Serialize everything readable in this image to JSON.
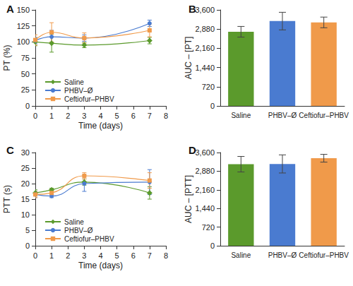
{
  "chart_data": [
    {
      "type": "line",
      "title": "A",
      "xlabel": "Time (days)",
      "ylabel": "PT (%)",
      "x": [
        0,
        1,
        3,
        7
      ],
      "xlim": [
        0,
        8
      ],
      "xticks": [
        0,
        1,
        2,
        3,
        4,
        5,
        6,
        7,
        8
      ],
      "ylim": [
        0,
        150
      ],
      "yticks": [
        0,
        25,
        50,
        75,
        100,
        125,
        150
      ],
      "grid": false,
      "legend": "lower left",
      "series": [
        {
          "name": "Saline",
          "color": "#5b9a2c",
          "marker": "diamond",
          "values": [
            100,
            98,
            95,
            102
          ],
          "errors": [
            6,
            14,
            4,
            5
          ]
        },
        {
          "name": "PHBV–Ø",
          "color": "#4a7bd0",
          "marker": "circle",
          "values": [
            102,
            108,
            106,
            129
          ],
          "errors": [
            5,
            10,
            5,
            5
          ]
        },
        {
          "name": "Ceftiofur–PHBV",
          "color": "#f09a4a",
          "marker": "square",
          "values": [
            103,
            115,
            106,
            118
          ],
          "errors": [
            8,
            15,
            8,
            10
          ]
        }
      ]
    },
    {
      "type": "bar",
      "title": "B",
      "ylabel": "AUC – [PT]",
      "categories": [
        "Saline",
        "PHBV–Ø",
        "Ceftiofur–PHBV"
      ],
      "values": [
        2780,
        3180,
        3130
      ],
      "errors": [
        200,
        330,
        200
      ],
      "colors": [
        "#5b9a2c",
        "#4a7bd0",
        "#f09a4a"
      ],
      "ylim": [
        0,
        3600
      ],
      "yticks": [
        0,
        720,
        {
          "value": 1440,
          "label": "1,440"
        },
        {
          "value": 2160,
          "label": "2,160"
        },
        {
          "value": 2880,
          "label": "2,880"
        },
        {
          "value": 3600,
          "label": "3,600"
        }
      ],
      "grid": false
    },
    {
      "type": "line",
      "title": "C",
      "xlabel": "Time (days)",
      "ylabel": "PTT (s)",
      "x": [
        0,
        1,
        3,
        7
      ],
      "xlim": [
        0,
        8
      ],
      "xticks": [
        0,
        1,
        2,
        3,
        4,
        5,
        6,
        7,
        8
      ],
      "ylim": [
        0,
        30
      ],
      "yticks": [
        0,
        5,
        10,
        15,
        20,
        25,
        30
      ],
      "grid": false,
      "legend": "lower left",
      "series": [
        {
          "name": "Saline",
          "color": "#5b9a2c",
          "marker": "diamond",
          "values": [
            17,
            18,
            20.5,
            17
          ],
          "errors": [
            1,
            0.5,
            1,
            2
          ]
        },
        {
          "name": "PHBV–Ø",
          "color": "#4a7bd0",
          "marker": "circle",
          "values": [
            16.5,
            16,
            20,
            20.5
          ],
          "errors": [
            1,
            0.5,
            2.5,
            4
          ]
        },
        {
          "name": "Ceftiofur–PHBV",
          "color": "#f09a4a",
          "marker": "square",
          "values": [
            16.5,
            17,
            22.5,
            21
          ],
          "errors": [
            1,
            0.5,
            1,
            2.5
          ]
        }
      ]
    },
    {
      "type": "bar",
      "title": "D",
      "ylabel": "AUC – [PTT]",
      "categories": [
        "Saline",
        "PHBV–Ø",
        "Ceftiofur–PHBV"
      ],
      "values": [
        3150,
        3160,
        3380
      ],
      "errors": [
        300,
        350,
        150
      ],
      "colors": [
        "#5b9a2c",
        "#4a7bd0",
        "#f09a4a"
      ],
      "ylim": [
        0,
        3600
      ],
      "yticks": [
        0,
        720,
        {
          "value": 1440,
          "label": "1,440"
        },
        {
          "value": 2160,
          "label": "2,160"
        },
        {
          "value": 2880,
          "label": "2,880"
        },
        {
          "value": 3600,
          "label": "3,600"
        }
      ],
      "grid": false
    }
  ]
}
